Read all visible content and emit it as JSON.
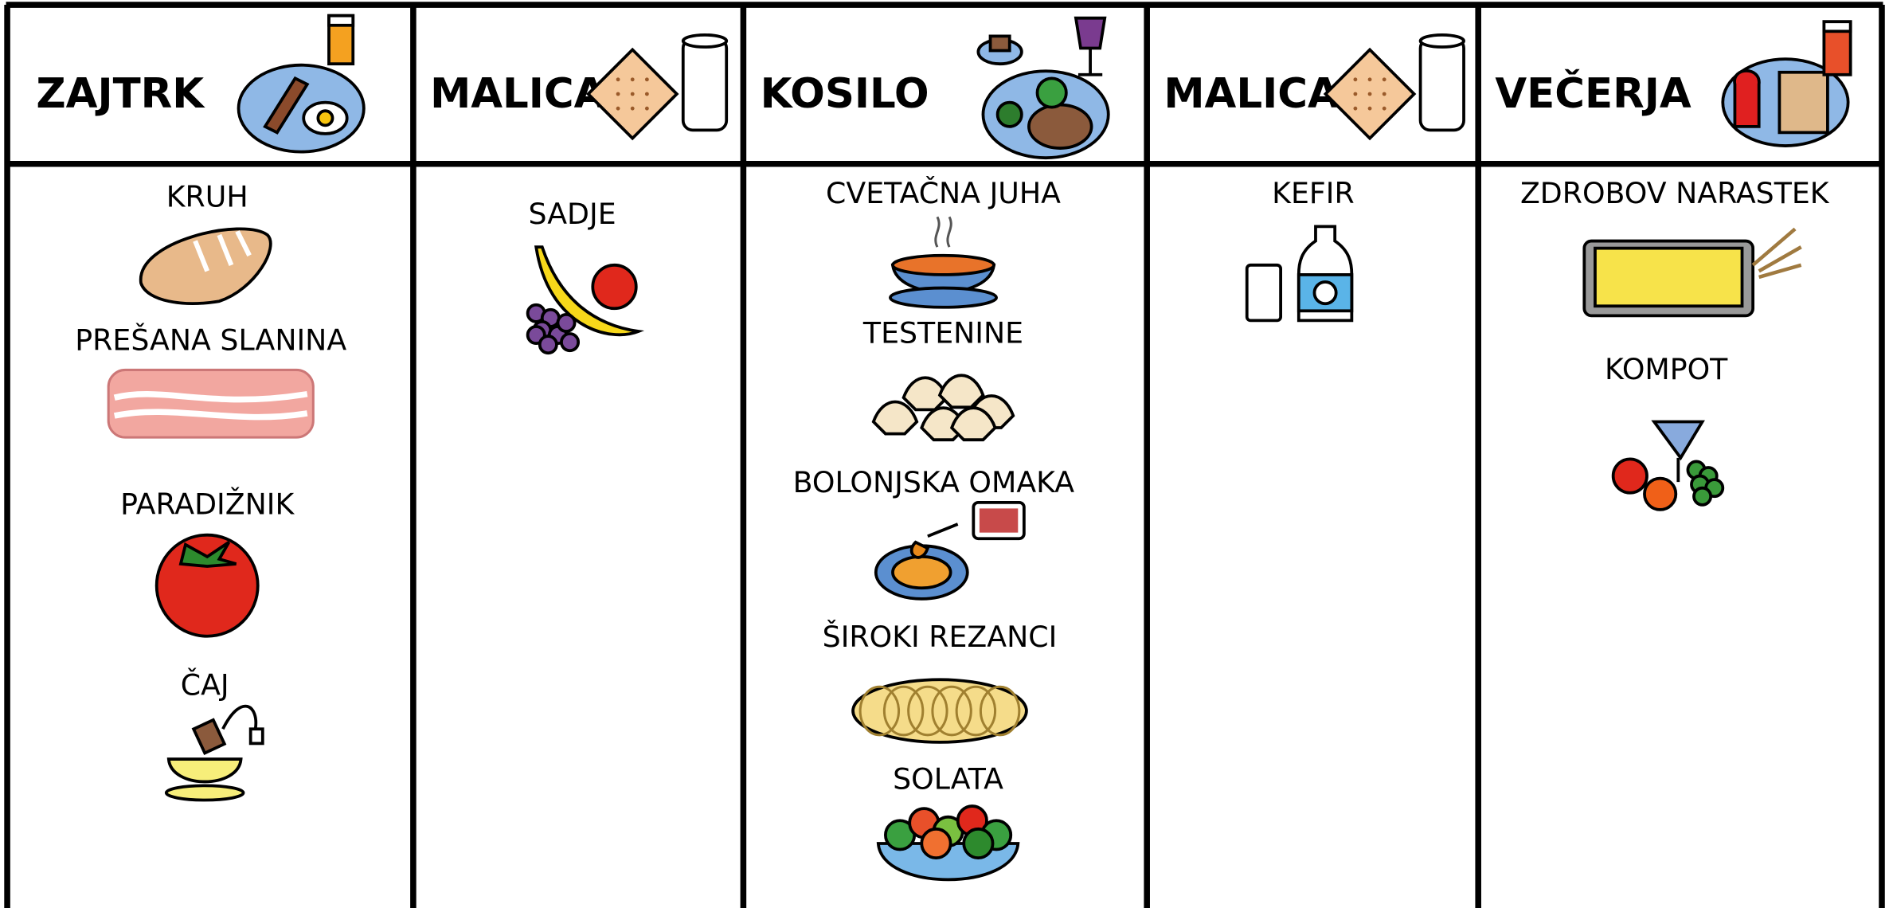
{
  "menu": {
    "columns": [
      {
        "title": "ZAJTRK",
        "items": [
          "KRUH",
          "PREŠANA SLANINA",
          "PARADIŽNIK",
          "ČAJ"
        ]
      },
      {
        "title": "MALICA",
        "items": [
          "SADJE"
        ]
      },
      {
        "title": "KOSILO",
        "items": [
          "CVETAČNA JUHA",
          "TESTENINE",
          "BOLONJSKA OMAKA",
          "ŠIROKI REZANCI",
          "SOLATA"
        ]
      },
      {
        "title": "MALICA",
        "items": [
          "KEFIR"
        ]
      },
      {
        "title": "VEČERJA",
        "items": [
          "ZDROBOV NARASTEK",
          "KOMPOT"
        ]
      }
    ]
  }
}
